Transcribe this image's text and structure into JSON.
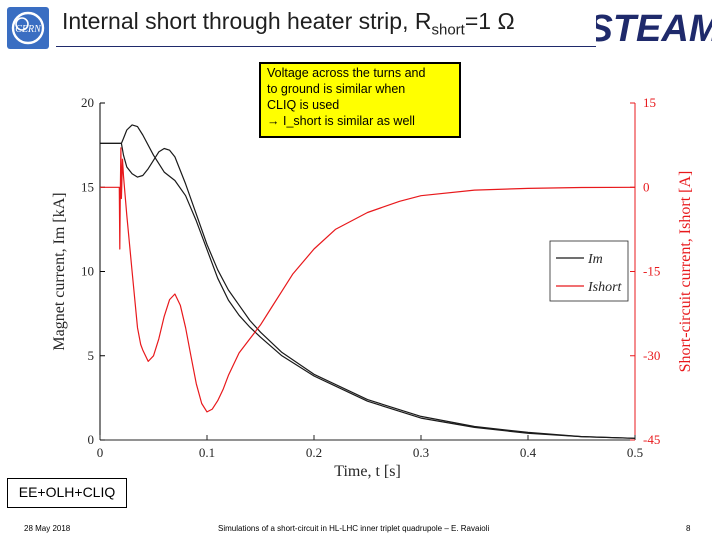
{
  "header": {
    "title_main": "Internal short through heater strip, R",
    "title_sub": "short",
    "title_tail": "=1 Ω",
    "cern_logo_text": "CERN",
    "steam_logo_text": "STEAM",
    "rule_color": "#1f2a6b"
  },
  "note": {
    "lines": [
      "Voltage across the turns and",
      "to ground is similar when",
      "CLIQ is used",
      "→ I_short is similar as well"
    ],
    "background": "#ffff00"
  },
  "scheme_label": "EE+OLH+CLIQ",
  "footer": {
    "date": "28 May 2018",
    "center": "Simulations of a short-circuit in HL-LHC inner triplet quadrupole – E. Ravaioli",
    "page": "8"
  },
  "chart_data": {
    "type": "line",
    "xlabel": "Time, t [s]",
    "ylabel_left": "Magnet current, Im [kA]",
    "ylabel_right": "Short-circuit current, Ishort [A]",
    "xlim": [
      0,
      0.5
    ],
    "ylim_left": [
      0,
      20
    ],
    "ylim_right": [
      -45,
      15
    ],
    "x_ticks": [
      "0",
      "0.1",
      "0.2",
      "0.3",
      "0.4",
      "0.5"
    ],
    "x_tick_values": [
      0,
      0.1,
      0.2,
      0.3,
      0.4,
      0.5
    ],
    "y_left_ticks": [
      "0",
      "5",
      "10",
      "15",
      "20"
    ],
    "y_left_tick_values": [
      0,
      5,
      10,
      15,
      20
    ],
    "y_right_ticks": [
      "-45",
      "-30",
      "-15",
      "0",
      "15"
    ],
    "y_right_tick_values": [
      -45,
      -30,
      -15,
      0,
      15
    ],
    "grid": false,
    "legend_position": "right",
    "left_axis_color": "#000000",
    "right_axis_color": "#e8191c",
    "series": [
      {
        "name": "Im",
        "axis": "left",
        "color": "#1a1a1a",
        "x": [
          0,
          0.02,
          0.022,
          0.025,
          0.03,
          0.035,
          0.04,
          0.045,
          0.05,
          0.055,
          0.06,
          0.065,
          0.07,
          0.08,
          0.09,
          0.1,
          0.11,
          0.12,
          0.13,
          0.14,
          0.15,
          0.17,
          0.2,
          0.25,
          0.3,
          0.35,
          0.4,
          0.45,
          0.5
        ],
        "y": [
          17.6,
          17.6,
          16.9,
          16.2,
          15.8,
          15.6,
          15.7,
          16.1,
          16.6,
          17.1,
          17.3,
          17.2,
          16.8,
          15.2,
          13.4,
          11.6,
          10.1,
          8.9,
          8.0,
          7.1,
          6.4,
          5.2,
          3.9,
          2.4,
          1.4,
          0.8,
          0.45,
          0.2,
          0.1
        ]
      },
      {
        "name": "Im",
        "axis": "left",
        "color": "#1a1a1a",
        "x": [
          0,
          0.02,
          0.022,
          0.025,
          0.03,
          0.035,
          0.04,
          0.05,
          0.06,
          0.07,
          0.08,
          0.09,
          0.1,
          0.11,
          0.12,
          0.13,
          0.14,
          0.15,
          0.17,
          0.2,
          0.25,
          0.3,
          0.35,
          0.4,
          0.45,
          0.5
        ],
        "y": [
          17.6,
          17.6,
          17.9,
          18.4,
          18.7,
          18.6,
          18.1,
          16.9,
          15.9,
          15.4,
          14.5,
          13.0,
          11.3,
          9.6,
          8.3,
          7.4,
          6.7,
          6.1,
          5.0,
          3.8,
          2.3,
          1.3,
          0.75,
          0.4,
          0.2,
          0.1
        ]
      },
      {
        "name": "Ishort",
        "axis": "right",
        "color": "#e8191c",
        "x": [
          0,
          0.018,
          0.0185,
          0.019,
          0.0195,
          0.02,
          0.021,
          0.022,
          0.025,
          0.03,
          0.035,
          0.038,
          0.04,
          0.045,
          0.05,
          0.055,
          0.06,
          0.065,
          0.07,
          0.075,
          0.08,
          0.085,
          0.09,
          0.095,
          0.1,
          0.105,
          0.11,
          0.115,
          0.12,
          0.13,
          0.14,
          0.15,
          0.16,
          0.17,
          0.18,
          0.2,
          0.22,
          0.25,
          0.28,
          0.3,
          0.35,
          0.4,
          0.45,
          0.5
        ],
        "y": [
          0,
          0,
          -11,
          -1,
          7,
          -2,
          5,
          2,
          -5,
          -15,
          -25,
          -28,
          -29,
          -31,
          -30,
          -27,
          -23,
          -20,
          -19,
          -21,
          -25,
          -30,
          -35,
          -38.5,
          -40,
          -39.5,
          -38,
          -36,
          -33.5,
          -29.5,
          -27,
          -24.5,
          -21.5,
          -18.5,
          -15.5,
          -11,
          -7.5,
          -4.5,
          -2.5,
          -1.5,
          -0.5,
          -0.2,
          -0.05,
          0
        ]
      }
    ],
    "legend": [
      {
        "label": "Im",
        "color": "#1a1a1a"
      },
      {
        "label": "Ishort",
        "color": "#e8191c"
      }
    ]
  }
}
